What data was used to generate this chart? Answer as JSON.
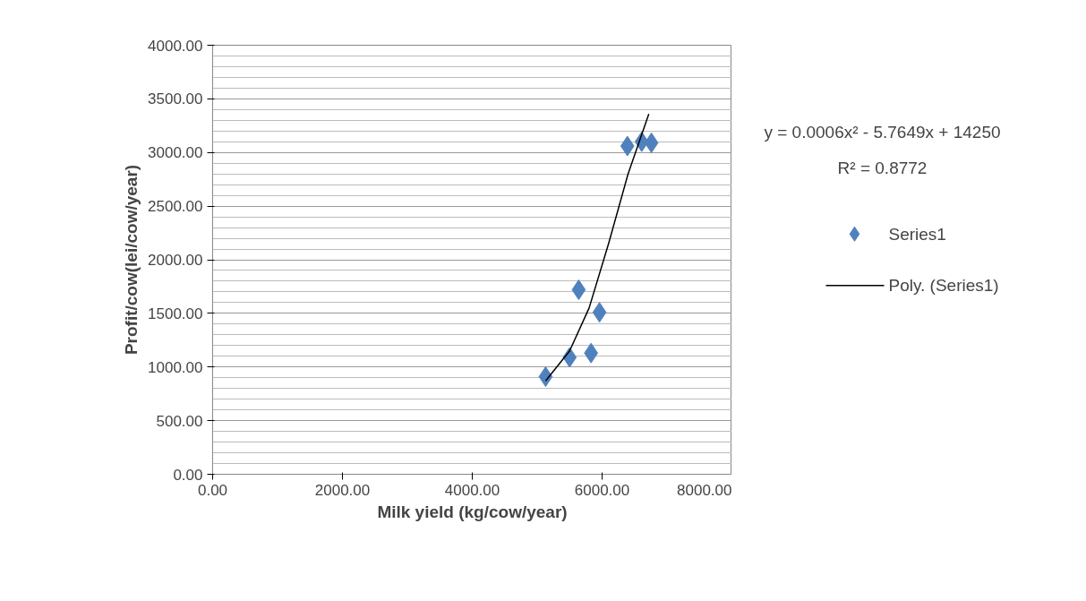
{
  "chart_data": {
    "type": "scatter",
    "xlabel": "Milk yield (kg/cow/year)",
    "ylabel": "Profit/cow(lei/cow/year)",
    "xlim": [
      0,
      8000
    ],
    "ylim": [
      0,
      4000
    ],
    "xticks": [
      {
        "value": 0,
        "label": "0.00"
      },
      {
        "value": 2000,
        "label": "2000.00"
      },
      {
        "value": 4000,
        "label": "4000.00"
      },
      {
        "value": 6000,
        "label": "6000.00"
      },
      {
        "value": 8000,
        "label": "8000.00"
      }
    ],
    "yticks": [
      {
        "value": 0,
        "label": "0.00"
      },
      {
        "value": 500,
        "label": "500.00"
      },
      {
        "value": 1000,
        "label": "1000.00"
      },
      {
        "value": 1500,
        "label": "1500.00"
      },
      {
        "value": 2000,
        "label": "2000.00"
      },
      {
        "value": 2500,
        "label": "2500.00"
      },
      {
        "value": 3000,
        "label": "3000.00"
      },
      {
        "value": 3500,
        "label": "3500.00"
      },
      {
        "value": 4000,
        "label": "4000.00"
      }
    ],
    "grid": "y",
    "legend": "right",
    "marker": "diamond",
    "series": [
      {
        "name": "Series1",
        "color": "#4f81bd",
        "x": [
          5130,
          5500,
          5640,
          5830,
          5960,
          6390,
          6610,
          6760
        ],
        "values": [
          910,
          1090,
          1720,
          1130,
          1510,
          3060,
          3100,
          3090
        ]
      },
      {
        "name": "Poly. (Series1)",
        "type": "line",
        "color": "#000000",
        "marker": "none",
        "x": [
          5130,
          5500,
          5800,
          6100,
          6400,
          6720
        ],
        "values": [
          870,
          1150,
          1550,
          2150,
          2800,
          3360
        ]
      }
    ],
    "annotations": [
      "y = 0.0006x² - 5.7649x + 14250",
      "R² = 0.8772"
    ]
  }
}
